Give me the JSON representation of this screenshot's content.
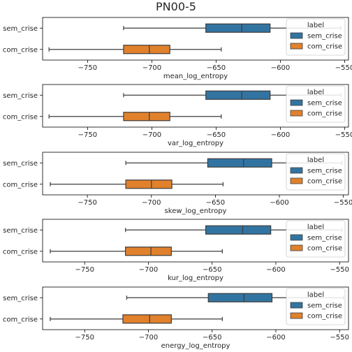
{
  "title": "PN00-5",
  "colors": {
    "sem_crise": "#3274a1",
    "com_crise": "#e1812c",
    "median": "#3d3d3d"
  },
  "chart_data": [
    {
      "type": "boxplot",
      "xlabel": "mean_log_entropy",
      "xlim": [
        -785,
        -547
      ],
      "xticks": [
        -750,
        -700,
        -650,
        -600,
        -550
      ],
      "categories": [
        "sem_crise",
        "com_crise"
      ],
      "legend": {
        "title": "label",
        "entries": [
          "sem_crise",
          "com_crise"
        ],
        "placement": "right"
      },
      "boxes": [
        {
          "label": "sem_crise",
          "whislo": -722,
          "q1": -658,
          "med": -630,
          "q3": -608,
          "whishi": -553
        },
        {
          "label": "com_crise",
          "whislo": -780,
          "q1": -722,
          "med": -702,
          "q3": -686,
          "whishi": -646
        }
      ]
    },
    {
      "type": "boxplot",
      "xlabel": "var_log_entropy",
      "xlim": [
        -785,
        -547
      ],
      "xticks": [
        -750,
        -700,
        -650,
        -600,
        -550
      ],
      "categories": [
        "sem_crise",
        "com_crise"
      ],
      "legend": {
        "title": "label",
        "entries": [
          "sem_crise",
          "com_crise"
        ],
        "placement": "right"
      },
      "boxes": [
        {
          "label": "sem_crise",
          "whislo": -722,
          "q1": -658,
          "med": -630,
          "q3": -608,
          "whishi": -553
        },
        {
          "label": "com_crise",
          "whislo": -780,
          "q1": -722,
          "med": -702,
          "q3": -686,
          "whishi": -646
        }
      ]
    },
    {
      "type": "boxplot",
      "xlabel": "skew_log_entropy",
      "xlim": [
        -785,
        -546
      ],
      "xticks": [
        -750,
        -700,
        -650,
        -600,
        -550
      ],
      "categories": [
        "sem_crise",
        "com_crise"
      ],
      "legend": {
        "title": "label",
        "entries": [
          "sem_crise",
          "com_crise"
        ],
        "placement": "right"
      },
      "boxes": [
        {
          "label": "sem_crise",
          "whislo": -720,
          "q1": -656,
          "med": -628,
          "q3": -606,
          "whishi": -551
        },
        {
          "label": "com_crise",
          "whislo": -779,
          "q1": -720,
          "med": -700,
          "q3": -684,
          "whishi": -644
        }
      ]
    },
    {
      "type": "boxplot",
      "xlabel": "kur_log_entropy",
      "xlim": [
        -783,
        -543
      ],
      "xticks": [
        -750,
        -700,
        -650,
        -600,
        -550
      ],
      "categories": [
        "sem_crise",
        "com_crise"
      ],
      "legend": {
        "title": "label",
        "entries": [
          "sem_crise",
          "com_crise"
        ],
        "placement": "right"
      },
      "boxes": [
        {
          "label": "sem_crise",
          "whislo": -718,
          "q1": -655,
          "med": -626,
          "q3": -604,
          "whishi": -548
        },
        {
          "label": "com_crise",
          "whislo": -777,
          "q1": -718,
          "med": -698,
          "q3": -682,
          "whishi": -642
        }
      ]
    },
    {
      "type": "boxplot",
      "xlabel": "energy_log_entropy",
      "xlim": [
        -783,
        -543
      ],
      "xticks": [
        -750,
        -700,
        -650,
        -600,
        -550
      ],
      "categories": [
        "sem_crise",
        "com_crise"
      ],
      "legend": {
        "title": "label",
        "entries": [
          "sem_crise",
          "com_crise"
        ],
        "placement": "right"
      },
      "boxes": [
        {
          "label": "sem_crise",
          "whislo": -717,
          "q1": -653,
          "med": -625,
          "q3": -603,
          "whishi": -547
        },
        {
          "label": "com_crise",
          "whislo": -777,
          "q1": -720,
          "med": -699,
          "q3": -682,
          "whishi": -642
        }
      ]
    }
  ]
}
